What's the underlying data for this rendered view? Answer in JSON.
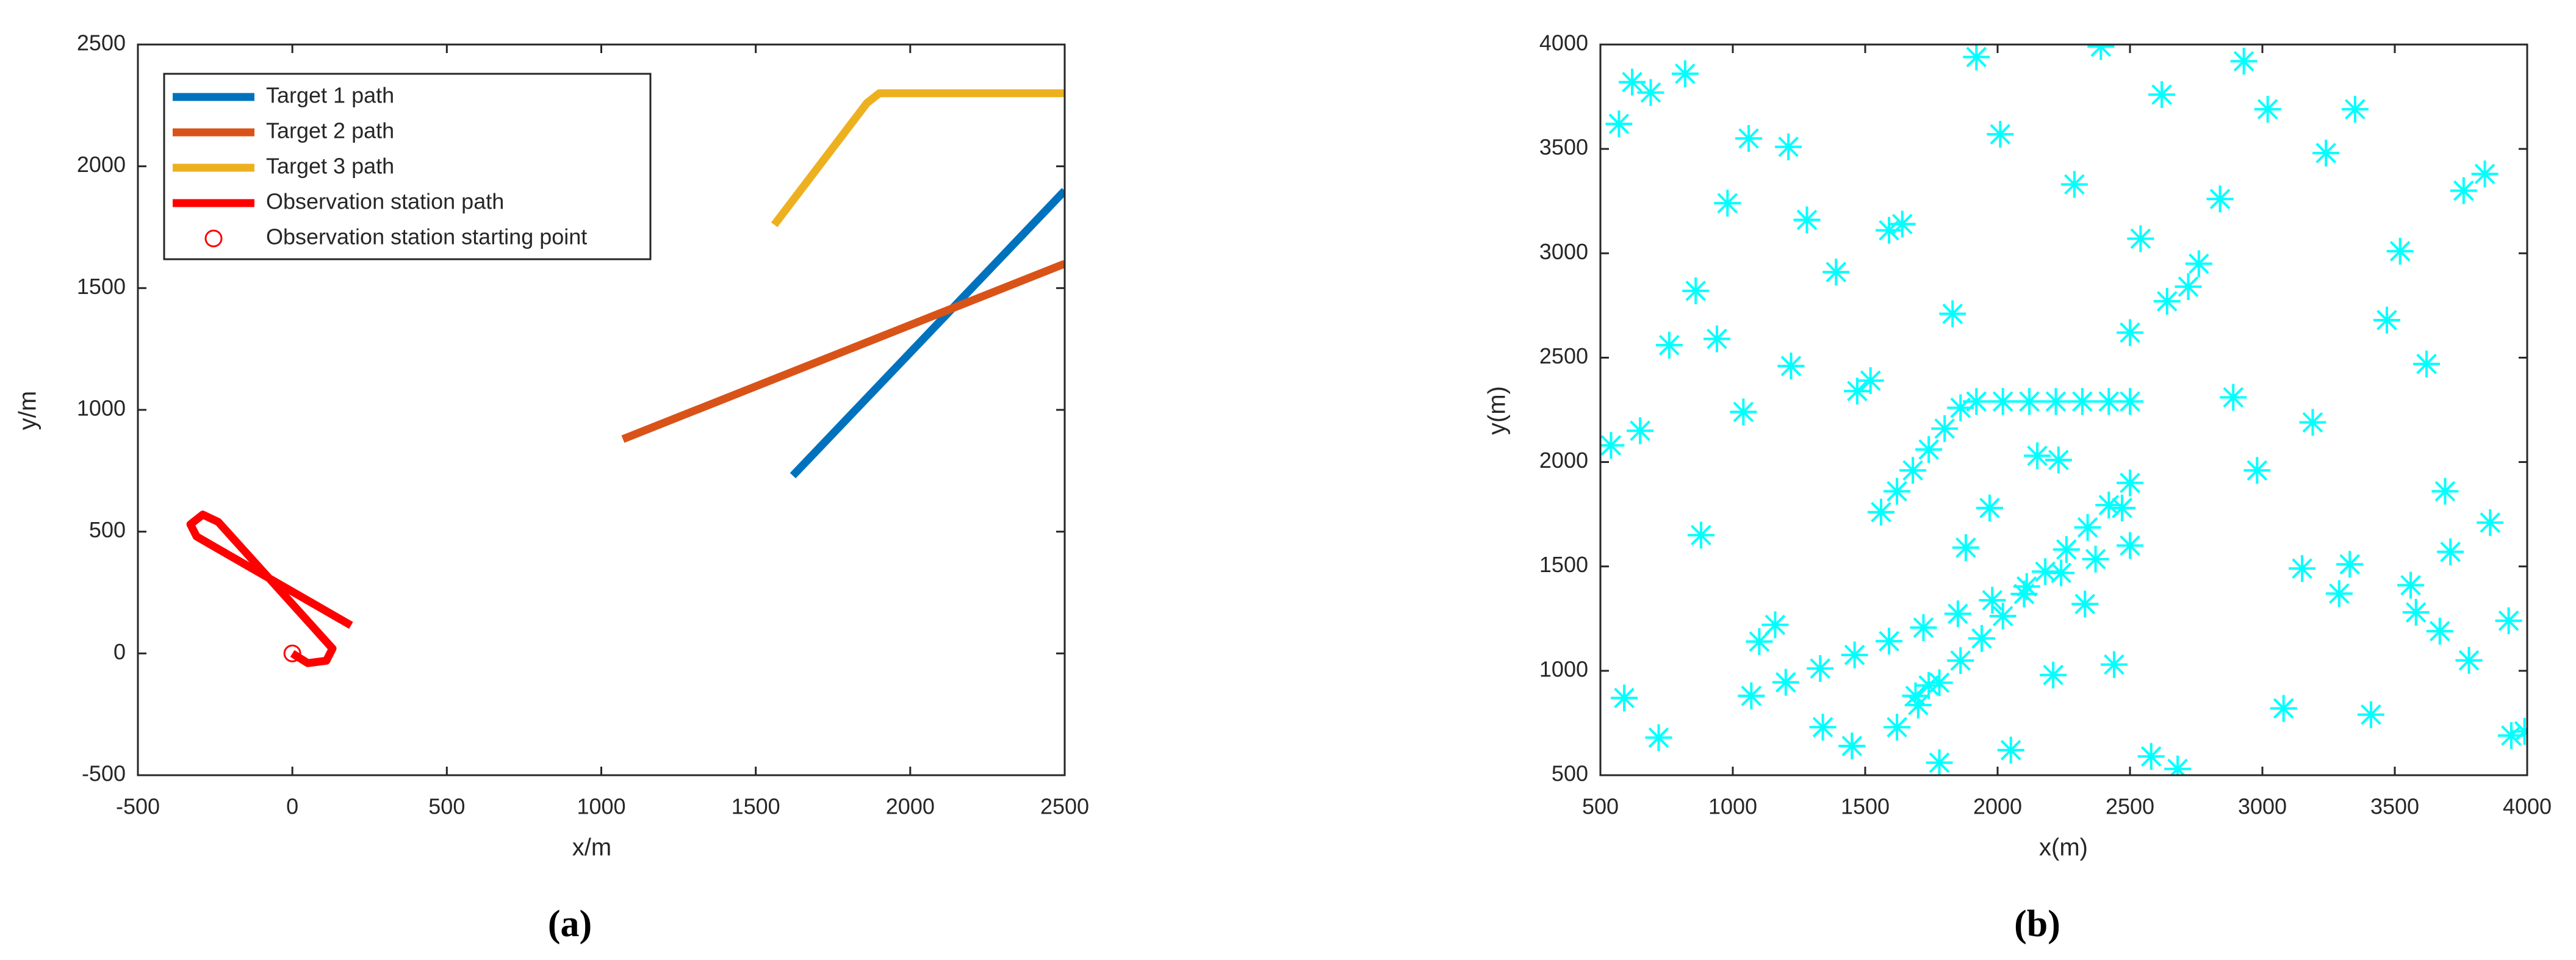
{
  "chart_data": [
    {
      "type": "line",
      "caption": "(a)",
      "xlabel": "x/m",
      "ylabel": "y/m",
      "xlim": [
        -500,
        2500
      ],
      "xticks": [
        -500,
        0,
        500,
        1000,
        1500,
        2000,
        2500
      ],
      "ylim": [
        -500,
        2500
      ],
      "yticks": [
        -500,
        0,
        500,
        1000,
        1500,
        2000,
        2500
      ],
      "grid": false,
      "box": true,
      "legend": "top-left",
      "series": [
        {
          "name": "Target 1 path",
          "color": "#0072bd",
          "style": "line",
          "x": [
            1620,
            2500
          ],
          "values": [
            730,
            1900
          ]
        },
        {
          "name": "Target 2 path",
          "color": "#d95319",
          "style": "line",
          "x": [
            1070,
            2500
          ],
          "values": [
            880,
            1600
          ]
        },
        {
          "name": "Target 3 path",
          "color": "#edb120",
          "style": "line",
          "x": [
            1560,
            1860,
            1900,
            2500
          ],
          "values": [
            1760,
            2260,
            2300,
            2300
          ]
        },
        {
          "name": "Observation station path",
          "color": "#ff0000",
          "style": "line",
          "x": [
            0,
            50,
            110,
            130,
            -240,
            -290,
            -330,
            -310,
            190
          ],
          "values": [
            0,
            -40,
            -30,
            20,
            540,
            570,
            530,
            480,
            115
          ]
        },
        {
          "name": "Observation station starting point",
          "color": "#ff0000",
          "style": "circle",
          "x": [
            0
          ],
          "values": [
            0
          ]
        }
      ]
    },
    {
      "type": "scatter",
      "caption": "(b)",
      "xlabel": "x(m)",
      "ylabel": "y(m)",
      "xlim": [
        500,
        4000
      ],
      "xticks": [
        500,
        1000,
        1500,
        2000,
        2500,
        3000,
        3500,
        4000
      ],
      "ylim": [
        500,
        4000
      ],
      "yticks": [
        500,
        1000,
        1500,
        2000,
        2500,
        3000,
        3500,
        4000
      ],
      "grid": false,
      "box": true,
      "series": [
        {
          "color": "#00ffff",
          "style": "star",
          "x": [
            620,
            1450,
            2890,
            3710,
            980,
            2210,
            3350,
            540,
            1780,
            2640,
            3930,
            1210,
            2470,
            3080,
            760,
            1920,
            3560,
            1340,
            2760,
            3840,
            880,
            2050,
            3190,
            1590,
            2330,
            3470,
            690,
            1690,
            2980,
            3760,
            1100,
            2580,
            3620,
            820,
            1880,
            2720,
            3990,
            1280,
            2150,
            3290,
            570,
            1520,
            2440,
            3520,
            1040,
            2010,
            3150,
            720,
            1830,
            2930,
            3690,
            1160,
            2290,
            3410,
            940,
            2540,
            3860,
            1390,
            2680,
            3240,
            650,
            1740,
            3020,
            3580,
            1220,
            2390,
            3780,
            860,
            1970,
            2840,
            3940,
            1470,
            2620,
            3330,
            590,
            1640,
            2500,
            3670,
            1060,
            2230
          ],
          "values": [
            3820,
            640,
            2310,
            1570,
            3240,
            980,
            3690,
            2080,
            560,
            2770,
            1240,
            3510,
            1780,
            820,
            2560,
            3940,
            1410,
            730,
            2950,
            3380,
            1650,
            620,
            2190,
            3110,
            1320,
            2680,
            3770,
            880,
            1960,
            3300,
            1140,
            590,
            2470,
            3860,
            1590,
            2840,
            710,
            3160,
            2030,
            1370,
            3620,
            2390,
            1030,
            3010,
            2240,
            3570,
            1490,
            680,
            2710,
            3920,
            1860,
            1220,
            3330,
            790,
            2590,
            3070,
            1710,
            2910,
            530,
            3480,
            2150,
            930,
            3690,
            1280,
            2460,
            3990,
            1050,
            2820,
            1780,
            3260,
            690,
            2340,
            3760,
            1510,
            870,
            3140,
            2620,
            1190,
            3550,
            2010
          ]
        },
        {
          "color": "#00ffff",
          "style": "star",
          "x": [
            1620,
            1700,
            1780,
            1860,
            1940,
            2020,
            2100,
            2180,
            2260,
            2340,
            2420,
            2500
          ],
          "values": [
            730,
            836,
            943,
            1049,
            1155,
            1262,
            1368,
            1475,
            1581,
            1687,
            1794,
            1900
          ]
        },
        {
          "color": "#00ffff",
          "style": "star",
          "x": [
            1070,
            1200,
            1330,
            1460,
            1590,
            1720,
            1850,
            1980,
            2110,
            2240,
            2370,
            2500
          ],
          "values": [
            880,
            945,
            1011,
            1076,
            1142,
            1207,
            1273,
            1338,
            1404,
            1469,
            1535,
            1600
          ]
        },
        {
          "color": "#00ffff",
          "style": "star",
          "x": [
            1560,
            1620,
            1680,
            1740,
            1800,
            1860,
            1920,
            2020,
            2120,
            2220,
            2320,
            2420,
            2500
          ],
          "values": [
            1760,
            1860,
            1960,
            2060,
            2160,
            2260,
            2290,
            2290,
            2290,
            2290,
            2290,
            2290,
            2290
          ]
        }
      ]
    }
  ]
}
